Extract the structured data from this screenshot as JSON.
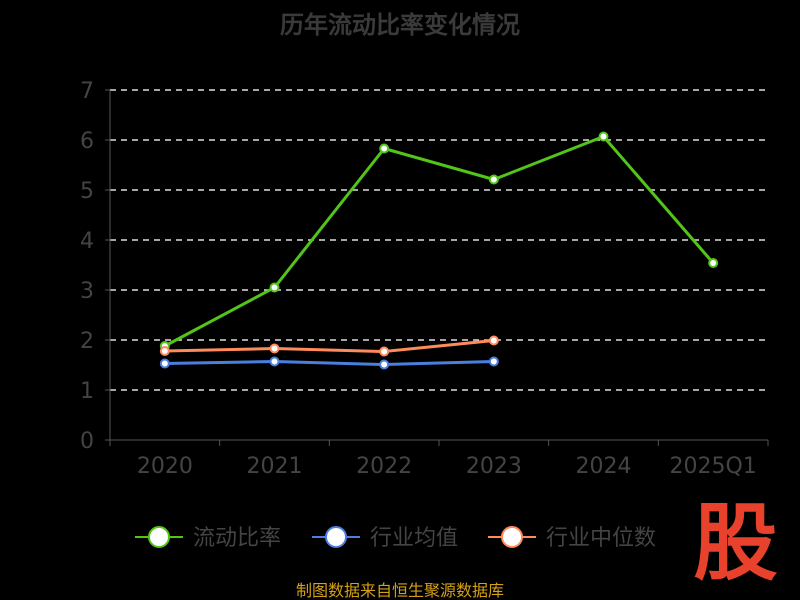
{
  "chart_data": {
    "type": "line",
    "title": "历年流动比率变化情况",
    "categories": [
      "2020",
      "2021",
      "2022",
      "2023",
      "2024",
      "2025Q1"
    ],
    "ylim": [
      0,
      7
    ],
    "yticks": [
      "0",
      "1",
      "2",
      "3",
      "4",
      "5",
      "6",
      "7"
    ],
    "grid": true,
    "legend_position": "bottom",
    "series": [
      {
        "name": "流动比率",
        "color": "#52c41a",
        "values": [
          1.88,
          3.05,
          5.83,
          5.21,
          6.07,
          3.54
        ]
      },
      {
        "name": "行业均值",
        "color": "#4a7fe0",
        "values": [
          1.53,
          1.57,
          1.51,
          1.57,
          null,
          null
        ]
      },
      {
        "name": "行业中位数",
        "color": "#ff8a5b",
        "values": [
          1.78,
          1.83,
          1.77,
          1.99,
          null,
          null
        ]
      }
    ],
    "source": "制图数据来自恒生聚源数据库"
  },
  "logo_text": "股"
}
